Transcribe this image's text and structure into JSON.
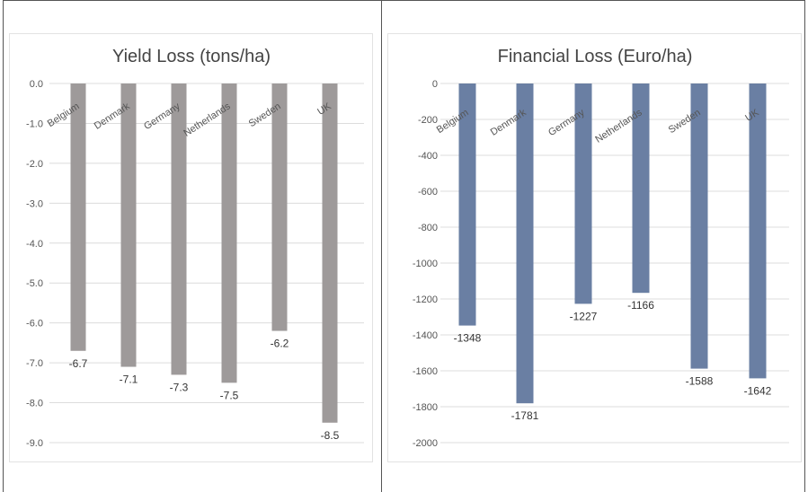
{
  "chart_data": [
    {
      "type": "bar",
      "title": "Yield Loss (tons/ha)",
      "categories": [
        "Belgium",
        "Denmark",
        "Germany",
        "Netherlands",
        "Sweden",
        "UK"
      ],
      "values": [
        -6.7,
        -7.1,
        -7.3,
        -7.5,
        -6.2,
        -8.5
      ],
      "ylim": [
        -9,
        0
      ],
      "yticks": [
        "0.0",
        "-1.0",
        "-2.0",
        "-3.0",
        "-4.0",
        "-5.0",
        "-6.0",
        "-7.0",
        "-8.0",
        "-9.0"
      ],
      "data_labels": [
        "-6.7",
        "-7.1",
        "-7.3",
        "-7.5",
        "-6.2",
        "-8.5"
      ],
      "xlabel": "",
      "ylabel": "",
      "grid": true,
      "bar_color": "#9e9a9a"
    },
    {
      "type": "bar",
      "title": "Financial Loss (Euro/ha)",
      "categories": [
        "Belgium",
        "Denmark",
        "Germany",
        "Netherlands",
        "Sweden",
        "UK"
      ],
      "values": [
        -1348,
        -1781,
        -1227,
        -1166,
        -1588,
        -1642
      ],
      "ylim": [
        -2000,
        0
      ],
      "yticks": [
        "0",
        "-200",
        "-400",
        "-600",
        "-800",
        "-1000",
        "-1200",
        "-1400",
        "-1600",
        "-1800",
        "-2000"
      ],
      "data_labels": [
        "-1348",
        "-1781",
        "-1227",
        "-1166",
        "-1588",
        "-1642"
      ],
      "xlabel": "",
      "ylabel": "",
      "grid": true,
      "bar_color": "#6a7fa3"
    }
  ]
}
